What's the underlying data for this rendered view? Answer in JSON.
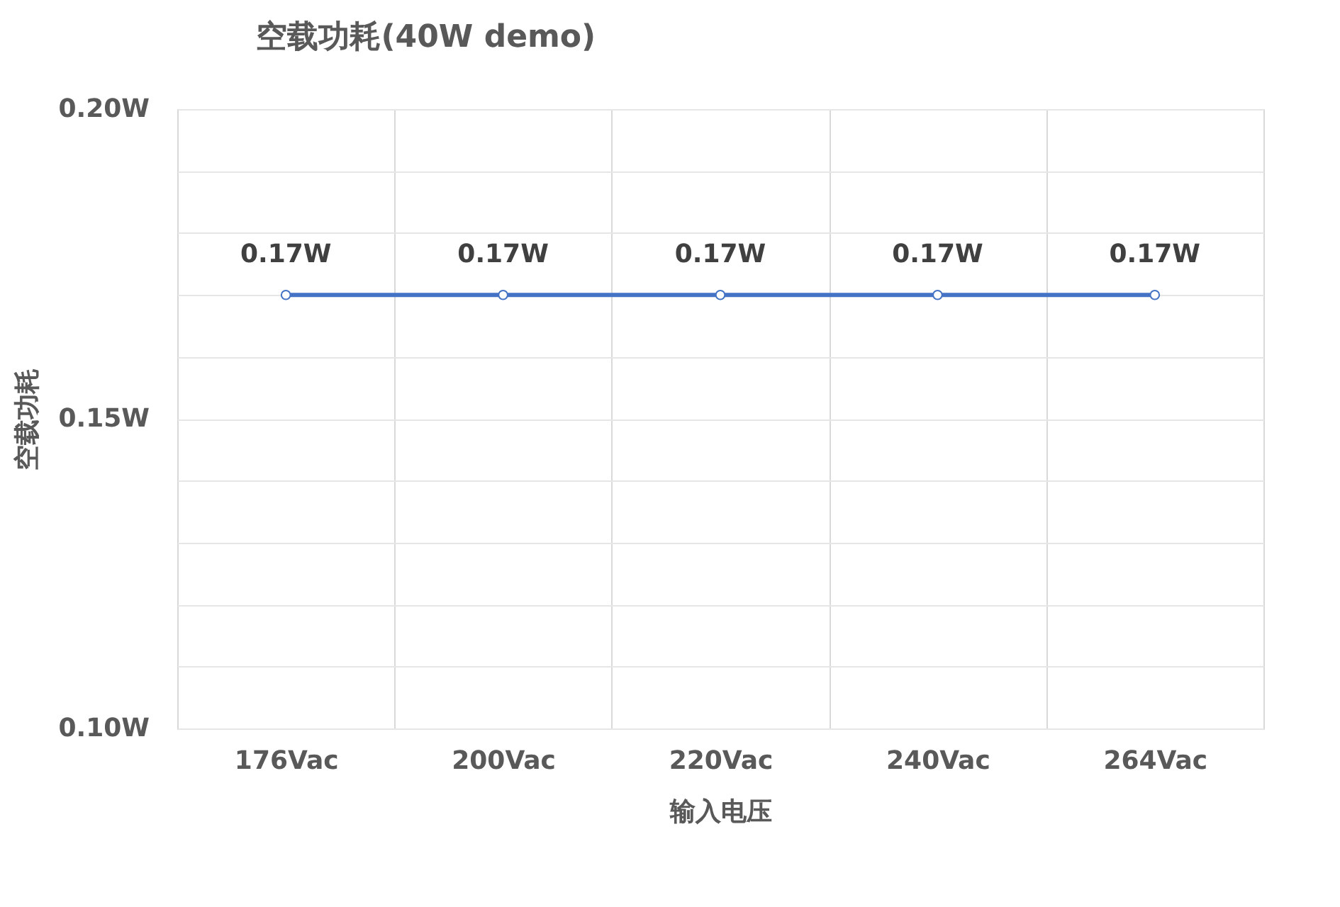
{
  "chart_data": {
    "type": "line",
    "title": "空载功耗(40W demo)",
    "xlabel": "输入电压",
    "ylabel": "空载功耗",
    "categories": [
      "176Vac",
      "200Vac",
      "220Vac",
      "240Vac",
      "264Vac"
    ],
    "series": [
      {
        "color": "#4472c4",
        "values": [
          0.17,
          0.17,
          0.17,
          0.17,
          0.17
        ],
        "value_labels": [
          "0.17W",
          "0.17W",
          "0.17W",
          "0.17W",
          "0.17W"
        ]
      }
    ],
    "ylim": [
      0.1,
      0.2
    ],
    "yticks": [
      {
        "value": 0.1,
        "label": "0.10W"
      },
      {
        "value": 0.11,
        "label": null
      },
      {
        "value": 0.12,
        "label": null
      },
      {
        "value": 0.13,
        "label": null
      },
      {
        "value": 0.14,
        "label": null
      },
      {
        "value": 0.15,
        "label": "0.15W"
      },
      {
        "value": 0.16,
        "label": null
      },
      {
        "value": 0.17,
        "label": null
      },
      {
        "value": 0.18,
        "label": null
      },
      {
        "value": 0.19,
        "label": null
      },
      {
        "value": 0.2,
        "label": "0.20W"
      }
    ],
    "grid": true,
    "marker": "circle",
    "line_style": "solid"
  }
}
